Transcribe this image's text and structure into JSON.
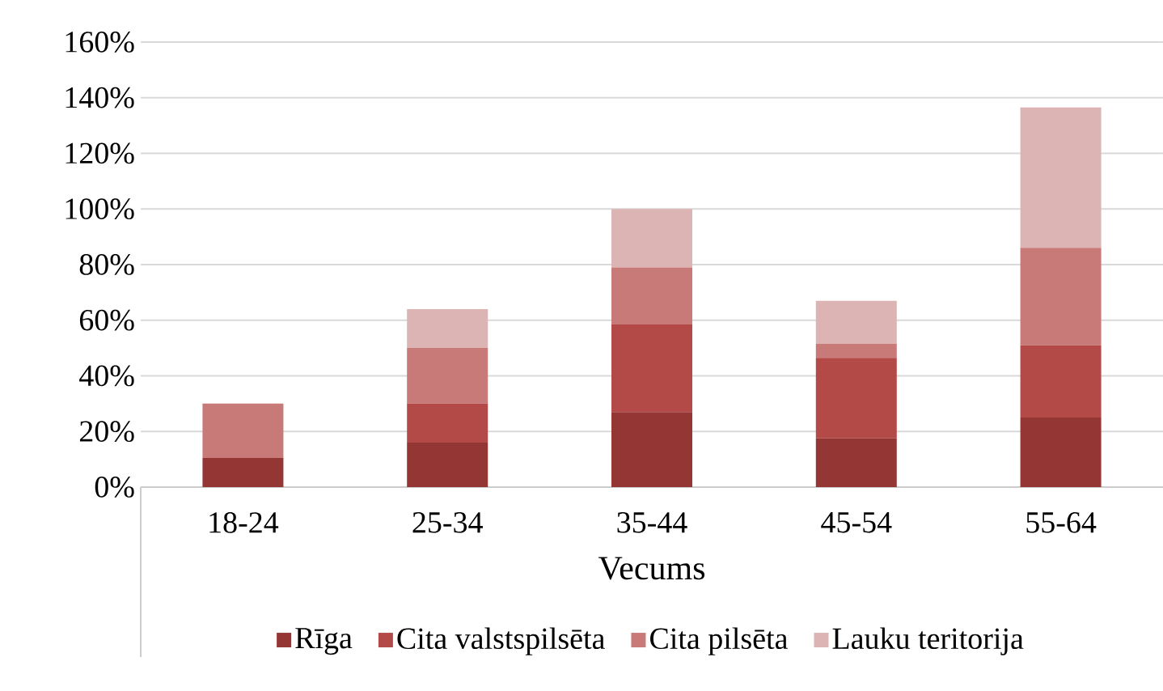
{
  "chart_data": {
    "type": "bar",
    "stacked": true,
    "xlabel": "Vecums",
    "categories": [
      "18-24",
      "25-34",
      "35-44",
      "45-54",
      "55-64"
    ],
    "series": [
      {
        "name": "Rīga",
        "color": "#943634",
        "values": [
          10.5,
          16,
          27,
          17.5,
          25
        ]
      },
      {
        "name": "Cita valstspilsēta",
        "color": "#b44a47",
        "values": [
          0,
          14,
          31.5,
          29,
          26
        ]
      },
      {
        "name": "Cita pilsēta",
        "color": "#c87a78",
        "values": [
          19.5,
          20,
          20.5,
          5,
          35
        ]
      },
      {
        "name": "Lauku teritorija",
        "color": "#dcb4b3",
        "values": [
          0,
          14,
          21,
          15.5,
          50.5
        ]
      }
    ],
    "ylim": [
      0,
      160
    ],
    "yticks": [
      {
        "value": 0,
        "label": "0%"
      },
      {
        "value": 20,
        "label": "20%"
      },
      {
        "value": 40,
        "label": "40%"
      },
      {
        "value": 60,
        "label": "60%"
      },
      {
        "value": 80,
        "label": "80%"
      },
      {
        "value": 100,
        "label": "100%"
      },
      {
        "value": 120,
        "label": "120%"
      },
      {
        "value": 140,
        "label": "140%"
      },
      {
        "value": 160,
        "label": "160%"
      }
    ],
    "grid": "y",
    "legend": "bottom"
  }
}
